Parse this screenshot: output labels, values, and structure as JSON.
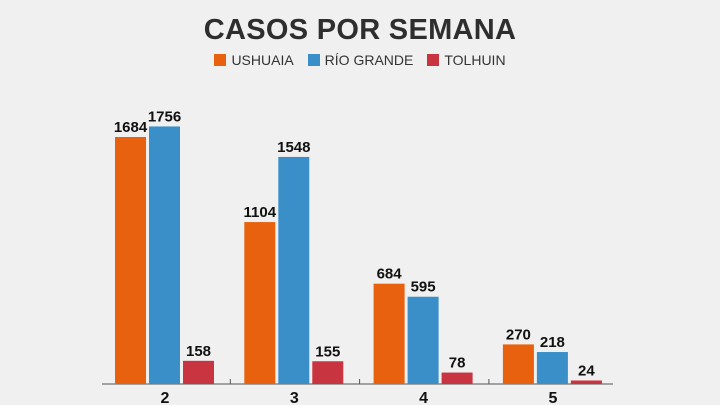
{
  "chart_data": {
    "type": "bar",
    "title": "CASOS POR SEMANA",
    "categories": [
      "2",
      "3",
      "4",
      "5"
    ],
    "series": [
      {
        "name": "USHUAIA",
        "color": "#e8610f",
        "values": [
          1684,
          1104,
          684,
          270
        ]
      },
      {
        "name": "RÍO GRANDE",
        "color": "#3a8fc9",
        "values": [
          1756,
          1548,
          595,
          218
        ]
      },
      {
        "name": "TOLHUIN",
        "color": "#c8343f",
        "values": [
          158,
          155,
          78,
          24
        ]
      }
    ],
    "xlabel": "",
    "ylabel": "",
    "ylim": [
      0,
      1800
    ],
    "grid": false,
    "legend_position": "top-center",
    "data_labels": true
  }
}
